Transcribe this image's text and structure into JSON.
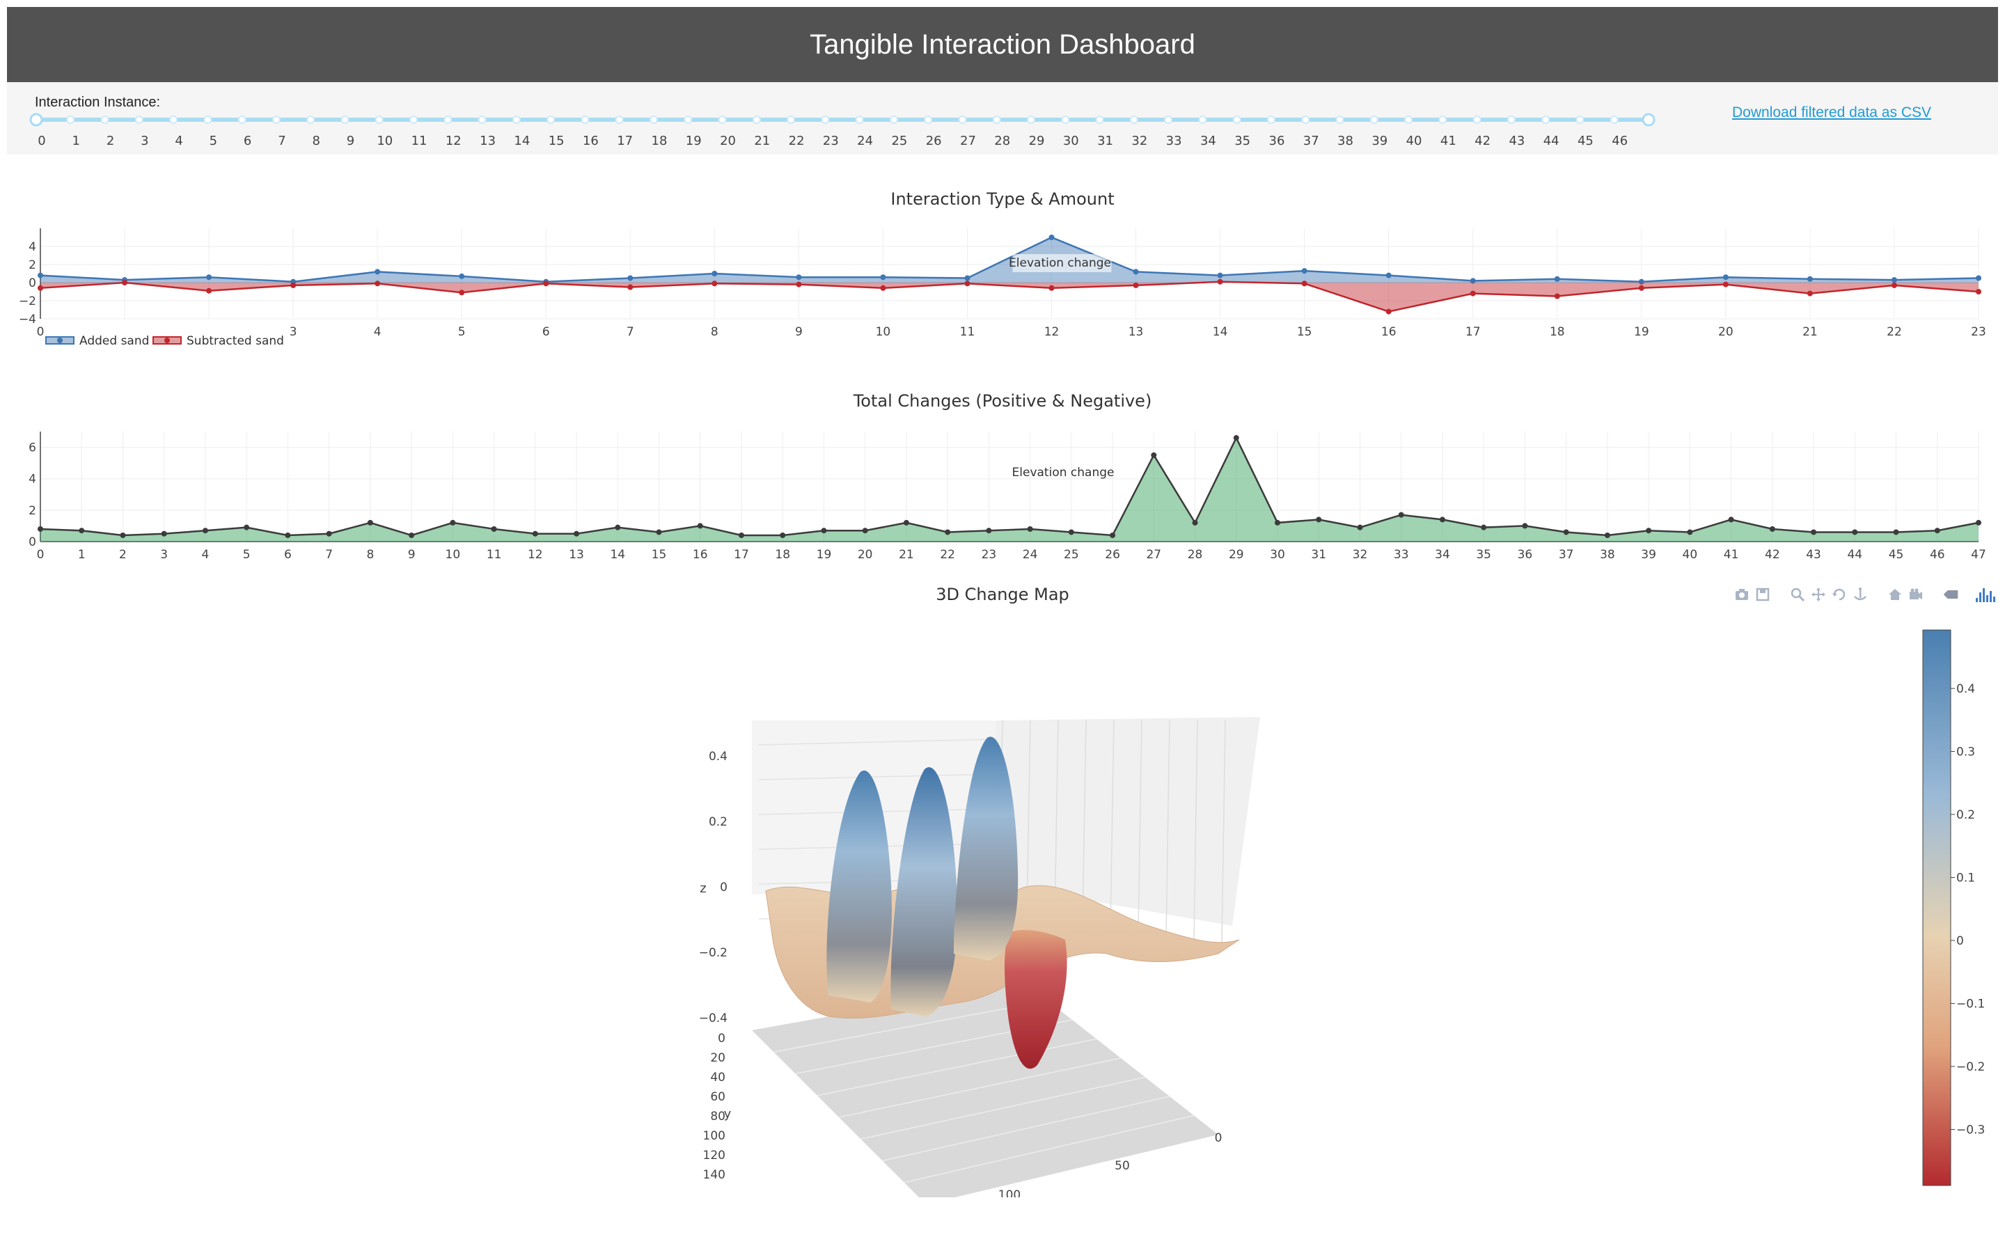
{
  "header": {
    "title": "Tangible Interaction Dashboard"
  },
  "controls": {
    "slider_label": "Interaction Instance:",
    "slider_ticks": [
      "0",
      "1",
      "2",
      "3",
      "4",
      "5",
      "6",
      "7",
      "8",
      "9",
      "10",
      "11",
      "12",
      "13",
      "14",
      "15",
      "16",
      "17",
      "18",
      "19",
      "20",
      "21",
      "22",
      "23",
      "24",
      "25",
      "26",
      "27",
      "28",
      "29",
      "30",
      "31",
      "32",
      "33",
      "34",
      "35",
      "36",
      "37",
      "38",
      "39",
      "40",
      "41",
      "42",
      "43",
      "44",
      "45",
      "46"
    ],
    "range_min": 0,
    "range_max": 47,
    "download_label": "Download filtered data as CSV"
  },
  "colors": {
    "added": "#3d76b3",
    "subtracted": "#c0262c",
    "total": "#3fa866",
    "slider": "#a8dcf2"
  },
  "chart_data": [
    {
      "type": "area",
      "title": "Interaction Type & Amount",
      "x": [
        0,
        1,
        2,
        3,
        4,
        5,
        6,
        7,
        8,
        9,
        10,
        11,
        12,
        13,
        14,
        15,
        16,
        17,
        18,
        19,
        20,
        21,
        22,
        23
      ],
      "xlim": [
        0,
        23
      ],
      "ylim": [
        -4,
        6
      ],
      "yticks": [
        "4",
        "2",
        "0",
        "−2",
        "−4"
      ],
      "series": [
        {
          "name": "Added sand",
          "values": [
            0.8,
            0.3,
            0.6,
            0.1,
            1.2,
            0.7,
            0.1,
            0.5,
            1.0,
            0.6,
            0.6,
            0.5,
            5.0,
            1.2,
            0.8,
            1.3,
            0.8,
            0.2,
            0.4,
            0.1,
            0.6,
            0.4,
            0.3,
            0.5
          ]
        },
        {
          "name": "Subtracted sand",
          "values": [
            -0.6,
            0.0,
            -0.9,
            -0.3,
            -0.1,
            -1.1,
            -0.1,
            -0.5,
            -0.1,
            -0.2,
            -0.6,
            -0.1,
            -0.6,
            -0.3,
            0.1,
            -0.1,
            -3.2,
            -1.2,
            -1.5,
            -0.6,
            -0.2,
            -1.2,
            -0.3,
            -1.0
          ]
        }
      ],
      "annotation": "Elevation change",
      "legend": [
        "Added sand",
        "Subtracted sand"
      ],
      "legend_position": "bottom-left"
    },
    {
      "type": "area",
      "title": "Total Changes (Positive & Negative)",
      "x": [
        0,
        1,
        2,
        3,
        4,
        5,
        6,
        7,
        8,
        9,
        10,
        11,
        12,
        13,
        14,
        15,
        16,
        17,
        18,
        19,
        20,
        21,
        22,
        23,
        24,
        25,
        26,
        27,
        28,
        29,
        30,
        31,
        32,
        33,
        34,
        35,
        36,
        37,
        38,
        39,
        40,
        41,
        42,
        43,
        44,
        45,
        46,
        47
      ],
      "xlim": [
        0,
        47
      ],
      "ylim": [
        0,
        7
      ],
      "yticks": [
        "6",
        "4",
        "2",
        "0"
      ],
      "series": [
        {
          "name": "",
          "values": [
            0.8,
            0.7,
            0.4,
            0.5,
            0.7,
            0.9,
            0.4,
            0.5,
            1.2,
            0.4,
            1.2,
            0.8,
            0.5,
            0.5,
            0.9,
            0.6,
            1.0,
            0.4,
            0.4,
            0.7,
            0.7,
            1.2,
            0.6,
            0.7,
            0.8,
            0.6,
            0.4,
            5.5,
            1.2,
            6.6,
            1.2,
            1.4,
            0.9,
            1.7,
            1.4,
            0.9,
            1.0,
            0.6,
            0.4,
            0.7,
            0.6,
            1.4,
            0.8,
            0.6,
            0.6,
            0.6,
            0.7,
            1.2
          ]
        }
      ],
      "annotation": "Elevation change"
    },
    {
      "type": "surface",
      "title": "3D Change Map",
      "zlabel": "z",
      "ylabel": "y",
      "zticks": [
        "0.4",
        "0.2",
        "0",
        "−0.2",
        "−0.4"
      ],
      "yticks": [
        "0",
        "20",
        "40",
        "60",
        "80",
        "100",
        "120",
        "140"
      ],
      "xticks": [
        "0",
        "50",
        "100"
      ],
      "colorbar_ticks": [
        "0.4",
        "0.3",
        "0.2",
        "0.1",
        "0",
        "−0.1",
        "−0.2",
        "−0.3"
      ],
      "colorscale": [
        "#4a7fb0",
        "#9bbad6",
        "#e6d2b2",
        "#e0a37d",
        "#b32a2f"
      ]
    }
  ]
}
